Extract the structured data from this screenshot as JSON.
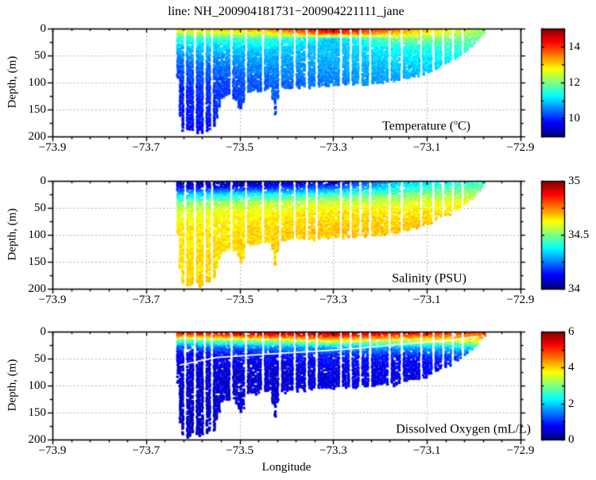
{
  "chart_data": {
    "type": "heatmap",
    "title": "line: NH_200904181731−200904221111_jane",
    "axes": {
      "xlabel": "Longitude",
      "ylabel": "Depth, (m)",
      "xlim": [
        -73.9,
        -72.9
      ],
      "ylim_m": [
        0,
        200
      ],
      "xticks": [
        {
          "v": -73.9,
          "label": "−73.9"
        },
        {
          "v": -73.7,
          "label": "−73.7"
        },
        {
          "v": -73.5,
          "label": "−73.5"
        },
        {
          "v": -73.3,
          "label": "−73.3"
        },
        {
          "v": -73.1,
          "label": "−73.1"
        },
        {
          "v": -72.9,
          "label": "−72.9"
        }
      ],
      "yticks": [
        {
          "v": 0,
          "label": "0"
        },
        {
          "v": 50,
          "label": "50"
        },
        {
          "v": 100,
          "label": "100"
        },
        {
          "v": 150,
          "label": "150"
        },
        {
          "v": 200,
          "label": "200"
        }
      ],
      "x_minor_step": 0.04,
      "y_minor_step": 25,
      "grid_style": "dotted"
    },
    "data_extent_lon": [
      -73.632,
      -72.978
    ],
    "bathymetry_lon_depth": [
      [
        -73.632,
        95
      ],
      [
        -73.625,
        190
      ],
      [
        -73.61,
        195
      ],
      [
        -73.59,
        192
      ],
      [
        -73.57,
        193
      ],
      [
        -73.555,
        188
      ],
      [
        -73.548,
        162
      ],
      [
        -73.54,
        133
      ],
      [
        -73.52,
        124
      ],
      [
        -73.505,
        135
      ],
      [
        -73.5,
        152
      ],
      [
        -73.493,
        152
      ],
      [
        -73.489,
        120
      ],
      [
        -73.45,
        114
      ],
      [
        -73.43,
        111
      ],
      [
        -73.428,
        158
      ],
      [
        -73.421,
        160
      ],
      [
        -73.417,
        111
      ],
      [
        -73.39,
        110
      ],
      [
        -73.35,
        108
      ],
      [
        -73.3,
        106
      ],
      [
        -73.25,
        104
      ],
      [
        -73.2,
        101
      ],
      [
        -73.16,
        97
      ],
      [
        -73.13,
        90
      ],
      [
        -73.1,
        82
      ],
      [
        -73.07,
        70
      ],
      [
        -73.04,
        57
      ],
      [
        -73.02,
        46
      ],
      [
        -73.0,
        31
      ],
      [
        -72.985,
        16
      ],
      [
        -72.978,
        8
      ]
    ],
    "missing_profile_gaps": [
      [
        -73.618,
        0.005
      ],
      [
        -73.598,
        0.005
      ],
      [
        -73.576,
        0.005
      ],
      [
        -73.557,
        0.005
      ],
      [
        -73.517,
        0.008
      ],
      [
        -73.486,
        0.005
      ],
      [
        -73.452,
        0.005
      ],
      [
        -73.414,
        0.007
      ],
      [
        -73.381,
        0.005
      ],
      [
        -73.358,
        0.005
      ],
      [
        -73.336,
        0.005
      ],
      [
        -73.282,
        0.005
      ],
      [
        -73.262,
        0.005
      ],
      [
        -73.24,
        0.005
      ],
      [
        -73.219,
        0.005
      ],
      [
        -73.18,
        0.009
      ],
      [
        -73.155,
        0.005
      ],
      [
        -73.112,
        0.005
      ],
      [
        -73.087,
        0.005
      ],
      [
        -73.065,
        0.005
      ],
      [
        -73.044,
        0.005
      ],
      [
        -73.022,
        0.005
      ]
    ],
    "panels": [
      {
        "name": "temperature",
        "label_pre": "Temperature (",
        "label_sup": "o",
        "label_post": "C)",
        "units": "deg C",
        "colormap": "jet",
        "clim": [
          9,
          15
        ],
        "colorbar_ticks": [
          {
            "v": 14,
            "label": "14"
          },
          {
            "v": 12,
            "label": "12"
          },
          {
            "v": 10,
            "label": "10"
          }
        ],
        "colorbar_minor_step": 1,
        "noise": 0.18,
        "speckle": 0.035,
        "field": {
          "lons": [
            -73.63,
            -73.45,
            -73.3,
            -73.15,
            -72.98
          ],
          "depths": [
            0,
            10,
            20,
            35,
            60,
            100,
            200
          ],
          "values": [
            [
              13.3,
              13.5,
              14.8,
              13.6,
              12.3
            ],
            [
              12.2,
              12.6,
              14.0,
              13.0,
              12.0
            ],
            [
              11.4,
              11.6,
              10.9,
              12.0,
              11.8
            ],
            [
              10.9,
              11.1,
              10.9,
              11.4,
              11.6
            ],
            [
              10.4,
              10.7,
              10.8,
              11.0,
              11.3
            ],
            [
              10.0,
              10.3,
              10.5,
              10.7,
              11.0
            ],
            [
              9.7,
              9.9,
              10.1,
              10.3,
              10.4
            ]
          ]
        }
      },
      {
        "name": "salinity",
        "label_pre": "Salinity (PSU)",
        "label_sup": "",
        "label_post": "",
        "units": "PSU",
        "colormap": "jet",
        "clim": [
          34,
          35
        ],
        "colorbar_ticks": [
          {
            "v": 35,
            "label": "35"
          },
          {
            "v": 34.5,
            "label": "34.5"
          },
          {
            "v": 34,
            "label": "34"
          }
        ],
        "colorbar_minor_step": 0.25,
        "noise": 0.035,
        "speckle": 0.05,
        "field": {
          "lons": [
            -73.63,
            -73.45,
            -73.3,
            -73.15,
            -72.98
          ],
          "depths": [
            0,
            12,
            25,
            40,
            60,
            90,
            200
          ],
          "values": [
            [
              34.02,
              34.04,
              34.05,
              34.32,
              34.42
            ],
            [
              34.1,
              34.13,
              34.22,
              34.38,
              34.46
            ],
            [
              34.32,
              34.36,
              34.42,
              34.48,
              34.56
            ],
            [
              34.5,
              34.55,
              34.57,
              34.58,
              34.62
            ],
            [
              34.6,
              34.63,
              34.65,
              34.65,
              34.67
            ],
            [
              34.64,
              34.66,
              34.68,
              34.68,
              34.7
            ],
            [
              34.66,
              34.68,
              34.7,
              34.7,
              34.7
            ]
          ]
        }
      },
      {
        "name": "dissolved-oxygen",
        "label_pre": "Dissolved Oxygen (mL/L)",
        "label_sup": "",
        "label_post": "",
        "units": "mL/L",
        "colormap": "jet",
        "clim": [
          0,
          6
        ],
        "colorbar_ticks": [
          {
            "v": 6,
            "label": "6"
          },
          {
            "v": 4,
            "label": "4"
          },
          {
            "v": 2,
            "label": "2"
          },
          {
            "v": 0,
            "label": "0"
          }
        ],
        "colorbar_minor_step": 1,
        "noise": 0.22,
        "speckle": 0.06,
        "contour_color": "#ffffff",
        "contour_lon_depth": [
          [
            -73.628,
            62
          ],
          [
            -73.55,
            48
          ],
          [
            -73.45,
            42
          ],
          [
            -73.35,
            37
          ],
          [
            -73.25,
            31
          ],
          [
            -73.15,
            23
          ],
          [
            -73.05,
            16
          ],
          [
            -72.99,
            9
          ]
        ],
        "field": {
          "lons": [
            -73.63,
            -73.45,
            -73.3,
            -73.15,
            -72.98
          ],
          "depths": [
            0,
            8,
            18,
            30,
            45,
            70,
            200
          ],
          "values": [
            [
              5.5,
              5.7,
              5.9,
              5.6,
              5.0
            ],
            [
              4.6,
              5.0,
              5.3,
              4.9,
              4.4
            ],
            [
              2.6,
              3.1,
              3.6,
              3.3,
              3.6
            ],
            [
              1.2,
              1.5,
              1.8,
              1.7,
              2.2
            ],
            [
              0.7,
              0.8,
              0.9,
              0.9,
              1.2
            ],
            [
              0.5,
              0.5,
              0.6,
              0.6,
              0.8
            ],
            [
              0.35,
              0.4,
              0.45,
              0.5,
              0.6
            ]
          ]
        }
      }
    ]
  }
}
